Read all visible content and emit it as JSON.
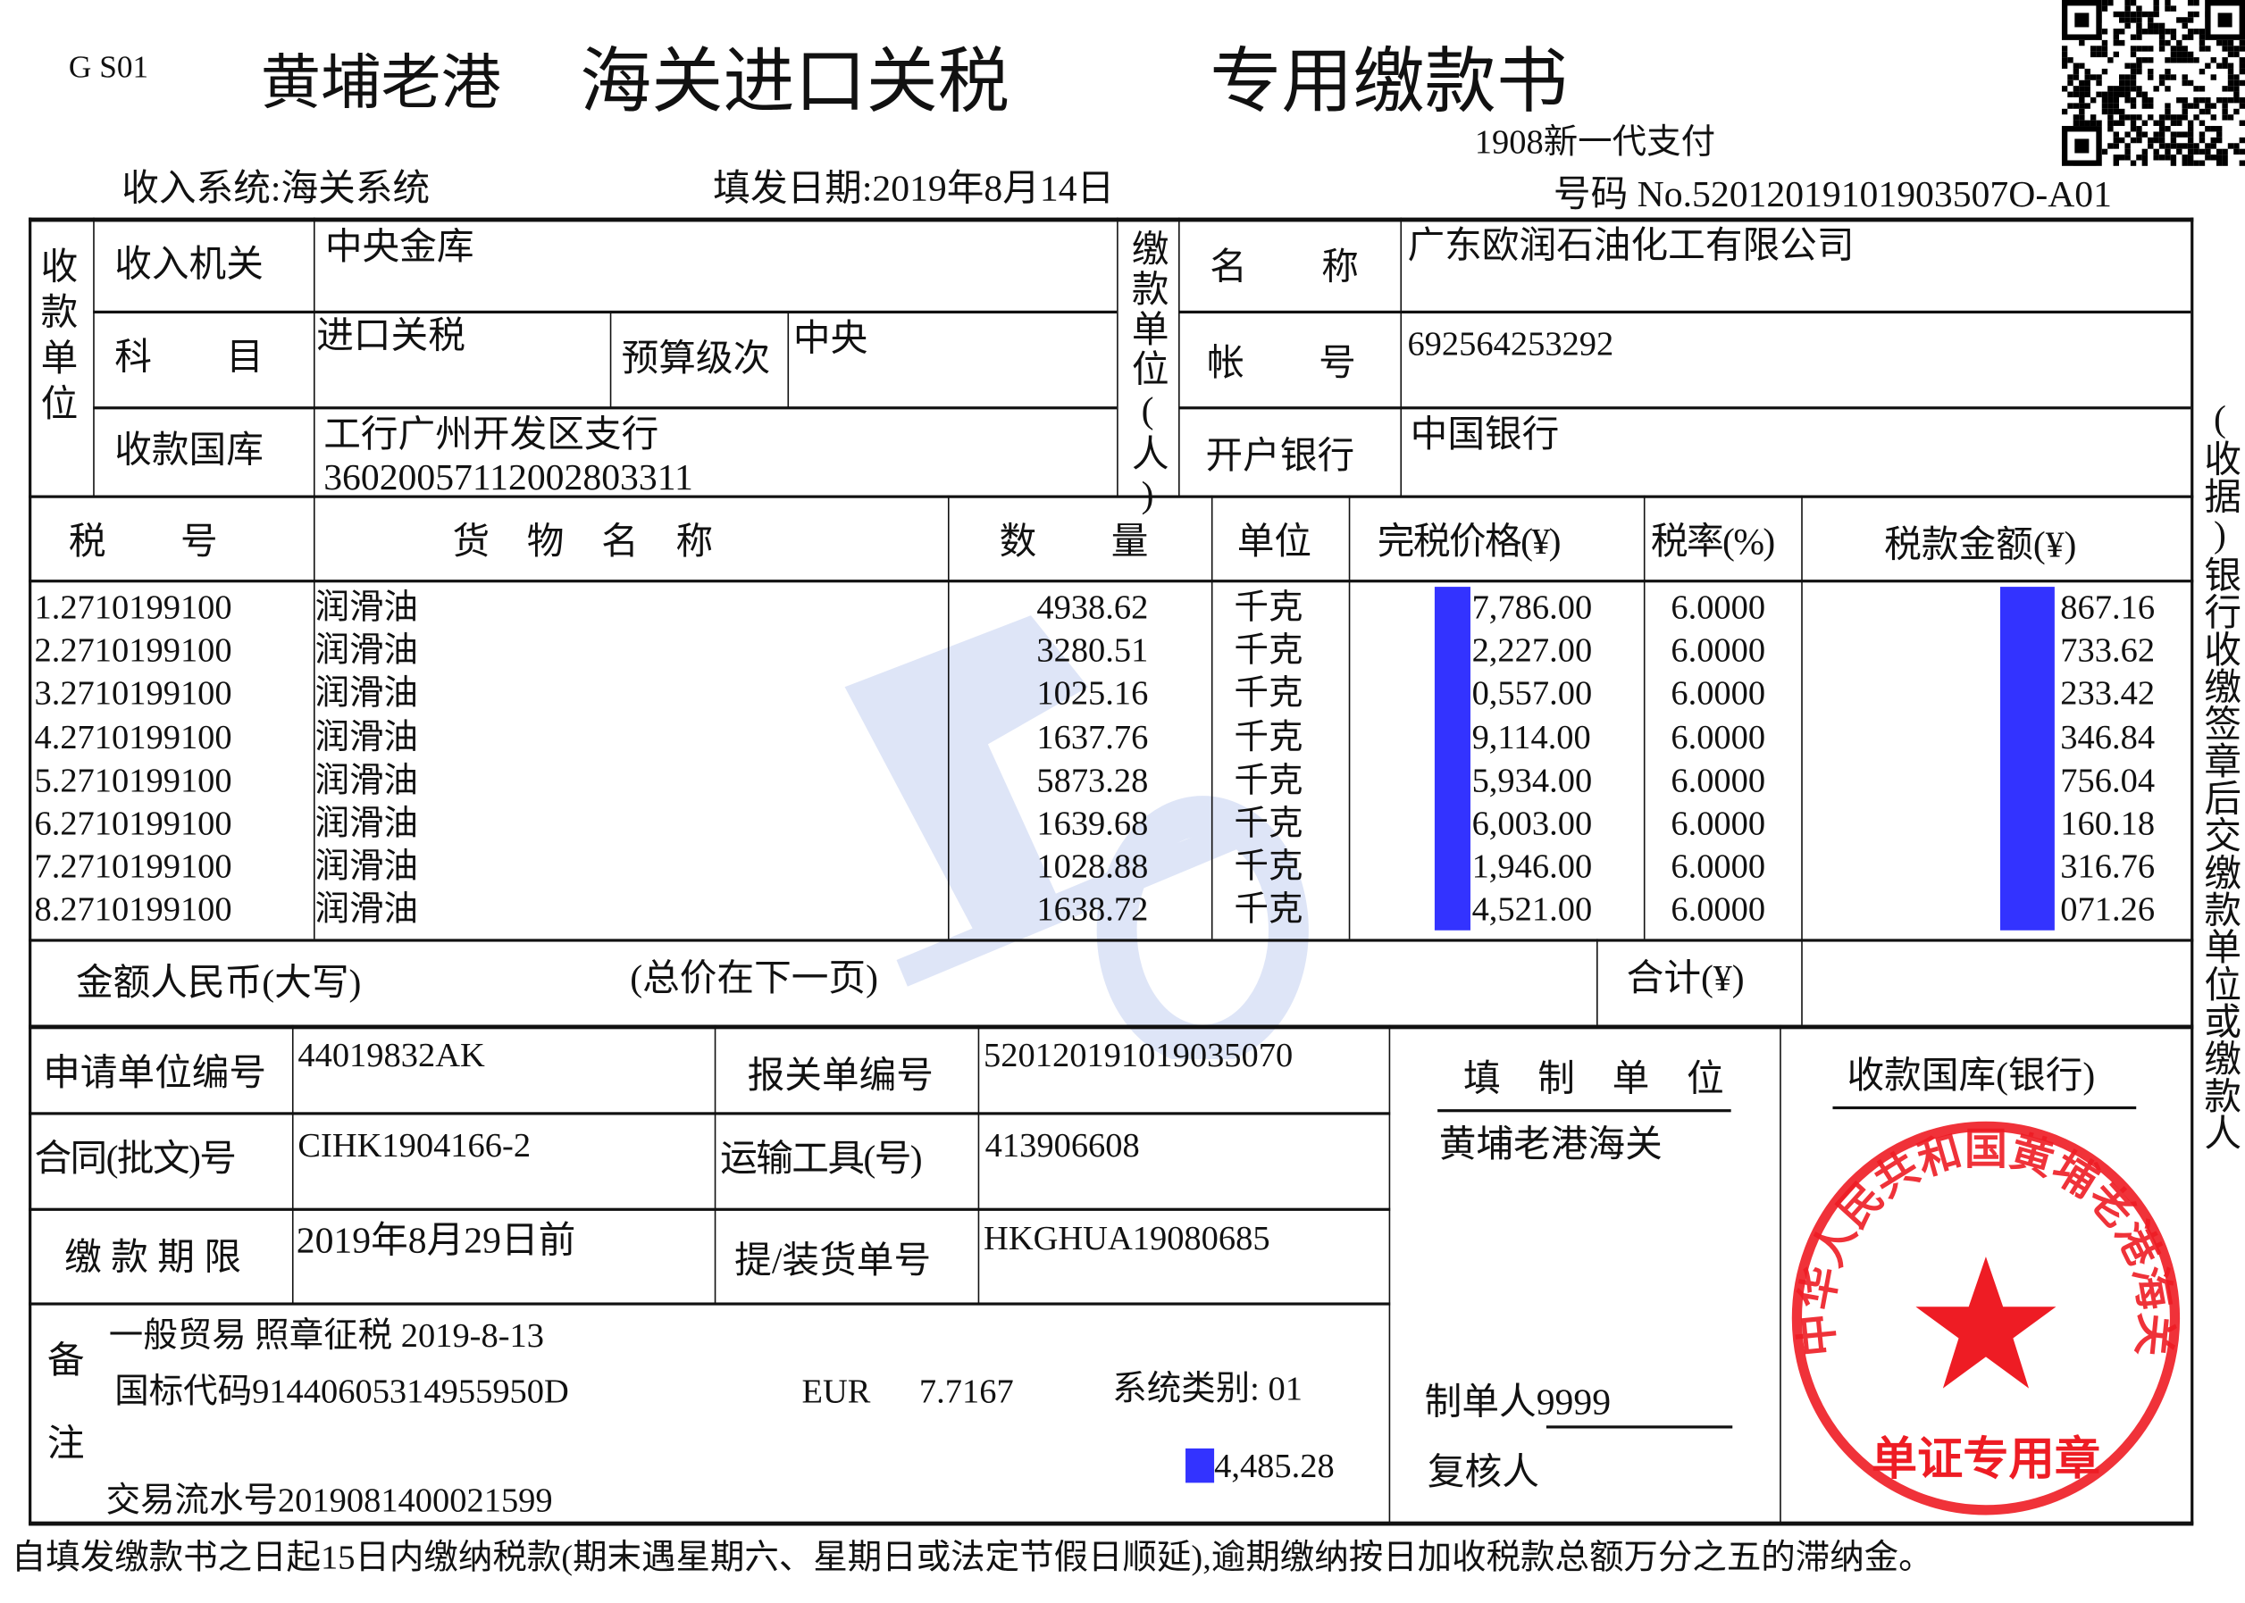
{
  "header": {
    "form_code": "G S01",
    "port": "黄埔老港",
    "title1": "海关进口关税",
    "title2": "专用缴款书",
    "pay_system": "1908新一代支付",
    "income_system": "收入系统:海关系统",
    "issue_date": "填发日期:2019年8月14日",
    "number": "号码 No.52012019101903507O-A01"
  },
  "receiver": {
    "section_label": "收款单位",
    "agency_label": "收入机关",
    "agency_value": "中央金库",
    "subject_label": "科　　目",
    "subject_value": "进口关税",
    "budget_label": "预算级次",
    "budget_value": "中央",
    "treasury_label": "收款国库",
    "treasury_value": "工行广州开发区支行",
    "treasury_account": "36020057112002803311"
  },
  "payer": {
    "section_label": "缴款单位(人)",
    "name_label": "名　　称",
    "name_value": "广东欧润石油化工有限公司",
    "account_label": "帐　　号",
    "account_value": "692564253292",
    "bank_label": "开户银行",
    "bank_value": "中国银行"
  },
  "goods_table": {
    "headers": [
      "税　　号",
      "货　物　名　称",
      "数　　量",
      "单位",
      "完税价格(¥)",
      "税率(%)",
      "税款金额(¥)"
    ],
    "rows": [
      [
        "1.2710199100",
        "润滑油",
        "4938.62",
        "千克",
        "7,786.00",
        "6.0000",
        "867.16"
      ],
      [
        "2.2710199100",
        "润滑油",
        "3280.51",
        "千克",
        "2,227.00",
        "6.0000",
        "733.62"
      ],
      [
        "3.2710199100",
        "润滑油",
        "1025.16",
        "千克",
        "0,557.00",
        "6.0000",
        "233.42"
      ],
      [
        "4.2710199100",
        "润滑油",
        "1637.76",
        "千克",
        "9,114.00",
        "6.0000",
        "346.84"
      ],
      [
        "5.2710199100",
        "润滑油",
        "5873.28",
        "千克",
        "5,934.00",
        "6.0000",
        "756.04"
      ],
      [
        "6.2710199100",
        "润滑油",
        "1639.68",
        "千克",
        "6,003.00",
        "6.0000",
        "160.18"
      ],
      [
        "7.2710199100",
        "润滑油",
        "1028.88",
        "千克",
        "1,946.00",
        "6.0000",
        "316.76"
      ],
      [
        "8.2710199100",
        "润滑油",
        "1638.72",
        "千克",
        "4,521.00",
        "6.0000",
        "071.26"
      ]
    ],
    "redaction_color": "#3333ff"
  },
  "totals": {
    "amount_words_label": "金额人民币(大写)",
    "amount_words_value": "(总价在下一页)",
    "total_label": "合计(¥)"
  },
  "details": {
    "applicant_code_label": "申请单位编号",
    "applicant_code_value": "44019832AK",
    "declaration_no_label": "报关单编号",
    "declaration_no_value": "520120191019035070",
    "contract_label": "合同(批文)号",
    "contract_value": "CIHK1904166-2",
    "transport_label": "运输工具(号)",
    "transport_value": "413906608",
    "deadline_label": "缴 款 期 限",
    "deadline_value": "2019年8月29日前",
    "bill_label": "提/装货单号",
    "bill_value": "HKGHUA19080685"
  },
  "remarks": {
    "label1": "备",
    "label2": "注",
    "line1": "一般贸易 照章征税 2019-8-13",
    "line2_code": "国标代码91440605314955950D",
    "line2_currency": "EUR",
    "line2_rate": "7.7167",
    "line2_system": "系统类别: 01",
    "amount": "4,485.28",
    "serial": "交易流水号2019081400021599"
  },
  "issuer": {
    "label": "填　制　单　位",
    "name": "黄埔老港海关",
    "preparer": "制单人9999",
    "reviewer": "复核人",
    "stamp_text": "中华人民共和国黄埔老港海关",
    "stamp_bottom": "单证专用章",
    "stamp_color": "#ee1c24"
  },
  "treasury_bank": {
    "label": "收款国库(银行)"
  },
  "side_note": "(收据)银行收缴签章后交缴款单位或缴款人",
  "footer": "自填发缴款书之日起15日内缴纳税款(期末遇星期六、星期日或法定节假日顺延),逾期缴纳按日加收税款总额万分之五的滞纳金。"
}
